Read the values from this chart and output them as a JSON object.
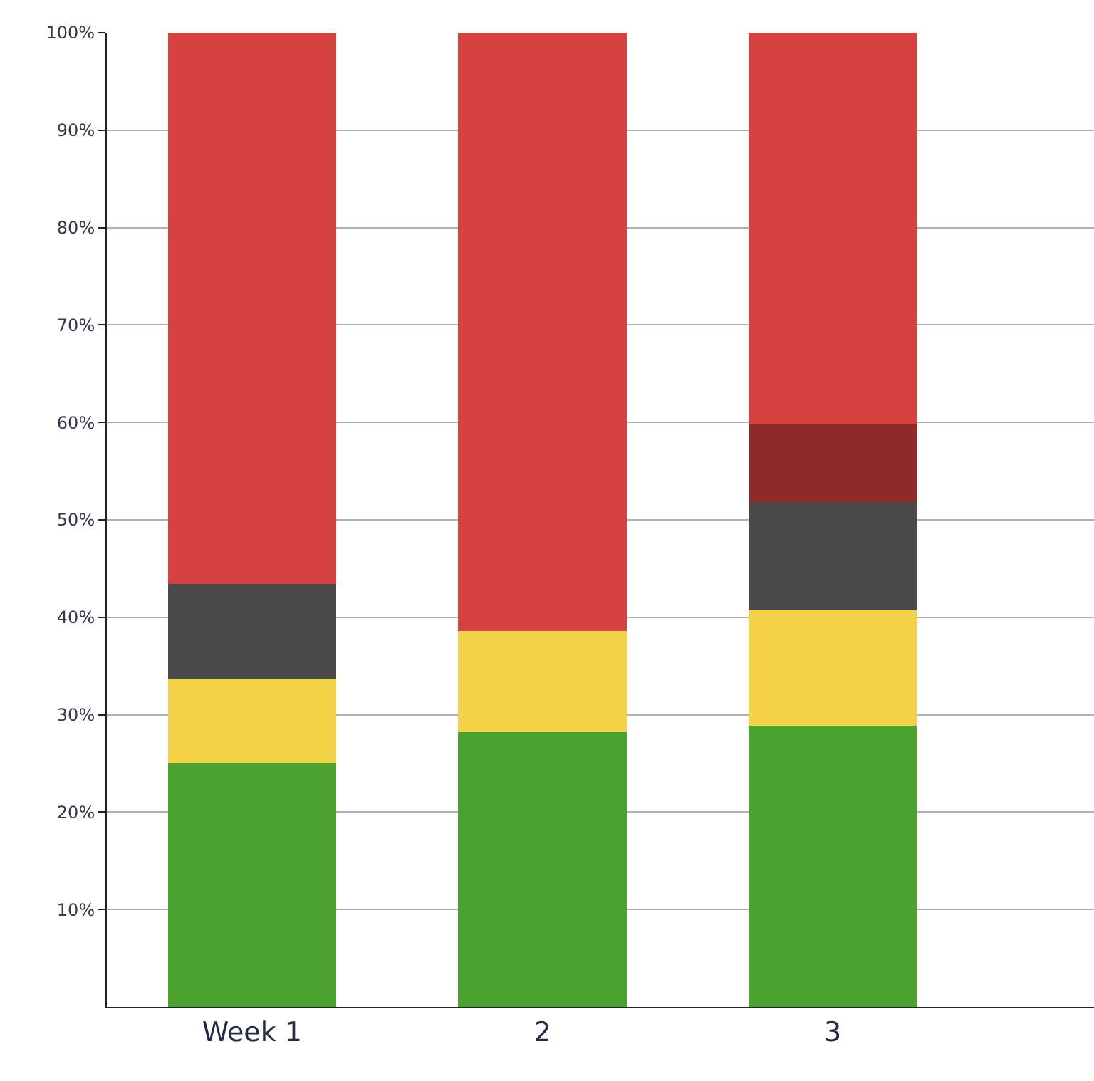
{
  "chart_data": {
    "type": "bar",
    "stacked": true,
    "categories": [
      "Week 1",
      "2",
      "3"
    ],
    "series": [
      {
        "color": "#4ba22f",
        "values": [
          25.0,
          28.2,
          28.9
        ]
      },
      {
        "color": "#f4d247",
        "values": [
          8.6,
          10.4,
          11.9
        ]
      },
      {
        "color": "#4a4849",
        "values": [
          9.8,
          0,
          11.0
        ]
      },
      {
        "color": "#8e2a2a",
        "values": [
          0,
          0,
          8.0
        ]
      },
      {
        "color": "#d5423f",
        "values": [
          56.6,
          61.4,
          40.2
        ]
      }
    ],
    "ylim": [
      0,
      100
    ],
    "yticks": [
      {
        "value": 10,
        "label": "10%"
      },
      {
        "value": 20,
        "label": "20%"
      },
      {
        "value": 30,
        "label": "30%"
      },
      {
        "value": 40,
        "label": "40%"
      },
      {
        "value": 50,
        "label": "50%"
      },
      {
        "value": 60,
        "label": "60%"
      },
      {
        "value": 70,
        "label": "70%"
      },
      {
        "value": 80,
        "label": "80%"
      },
      {
        "value": 90,
        "label": "90%"
      },
      {
        "value": 100,
        "label": "100%"
      }
    ],
    "grid": "y"
  }
}
